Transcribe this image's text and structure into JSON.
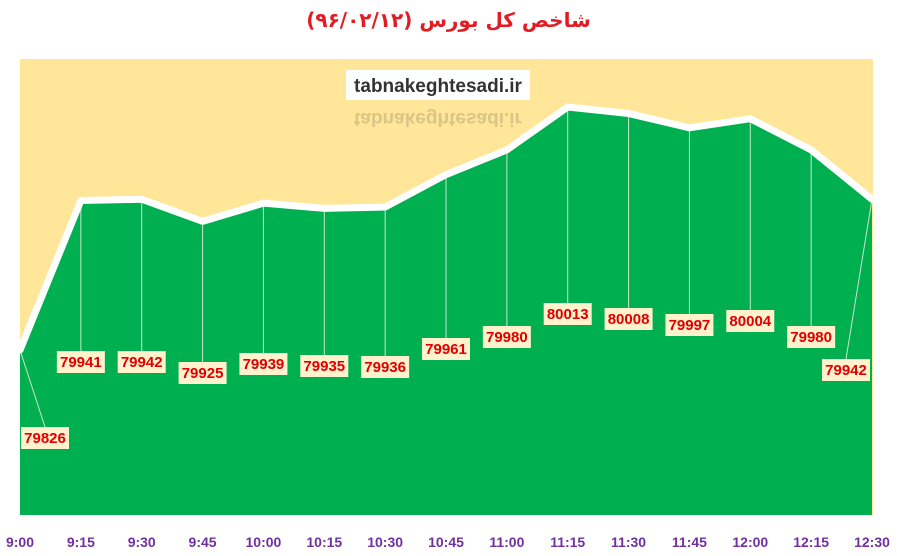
{
  "chart_data": {
    "type": "area",
    "title": "شاخص کل بورس (۹۶/۰۲/۱۲)",
    "watermark": "tabnakeghtesadi.ir",
    "x": [
      "9:00",
      "9:15",
      "9:30",
      "9:45",
      "10:00",
      "10:15",
      "10:30",
      "10:45",
      "11:00",
      "11:15",
      "11:30",
      "11:45",
      "12:00",
      "12:15",
      "12:30"
    ],
    "values": [
      79826,
      79941,
      79942,
      79925,
      79939,
      79935,
      79936,
      79961,
      79980,
      80013,
      80008,
      79997,
      80004,
      79980,
      79942
    ],
    "labels": [
      "79826",
      "79941",
      "79942",
      "79925",
      "79939",
      "79935",
      "79936",
      "79961",
      "79980",
      "80013",
      "80008",
      "79997",
      "80004",
      "79980",
      "79942"
    ],
    "colors": {
      "area": "#00b050",
      "background": "#ffe699",
      "line": "#ffffff",
      "label_bg": "#fff2cc",
      "label_text": "#e00000",
      "tick_text": "#7030a0",
      "title": "#e31b23"
    },
    "grid": false,
    "legend": "none"
  }
}
